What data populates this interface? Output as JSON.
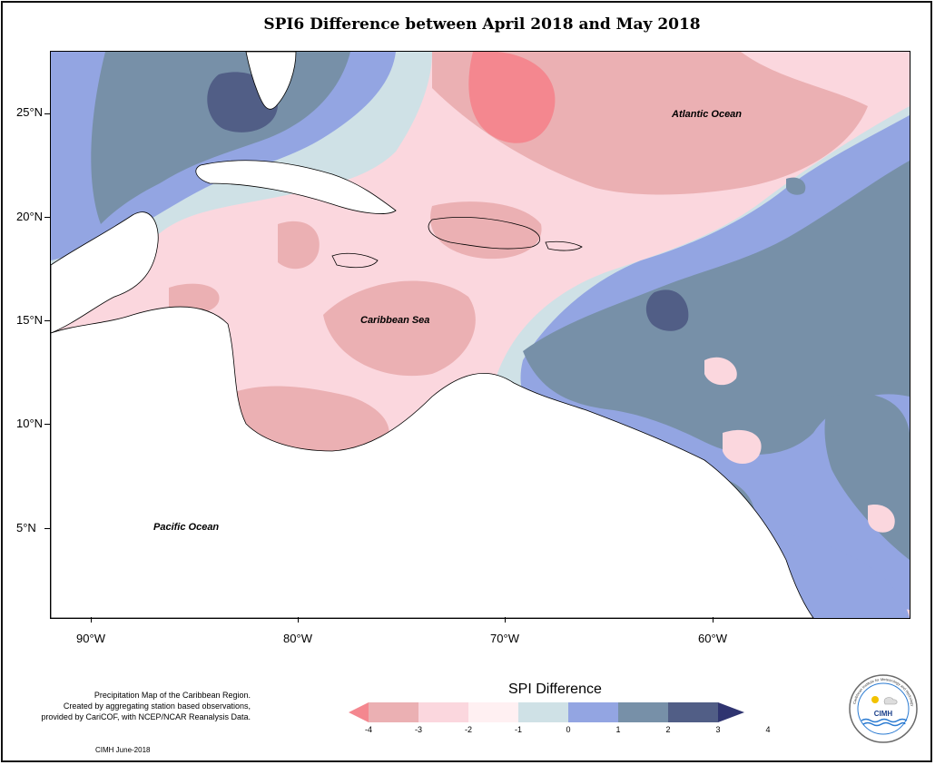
{
  "title": "SPI6 Difference between April 2018 and May 2018",
  "map": {
    "latitude_labels": [
      "25°N",
      "20°N",
      "15°N",
      "10°N",
      "5°N"
    ],
    "longitude_labels": [
      "90°W",
      "80°W",
      "70°W",
      "60°W"
    ],
    "ocean_labels": [
      "Atlantic Ocean",
      "Caribbean Sea",
      "Pacific Ocean"
    ]
  },
  "legend": {
    "title": "SPI Difference",
    "ticks": [
      "-4",
      "-3",
      "-2",
      "-1",
      "0",
      "1",
      "2",
      "3",
      "4"
    ],
    "colors": [
      "#f4878f",
      "#ebb0b3",
      "#fbd7de",
      "#fff0f2",
      "#cfe1e6",
      "#93a5e2",
      "#7790a8",
      "#515e86",
      "#2f3470"
    ]
  },
  "notes": {
    "line1": "Precipitation Map of the Caribbean Region.",
    "line2": "Created by aggregating station based observations,",
    "line3": "provided by CariCOF, with NCEP/NCAR Reanalysis Data."
  },
  "credit": "CIMH June-2018",
  "logo": {
    "text": "CIMH",
    "ring_text": "Caribbean Institute for Meteorology and Hydrology"
  }
}
